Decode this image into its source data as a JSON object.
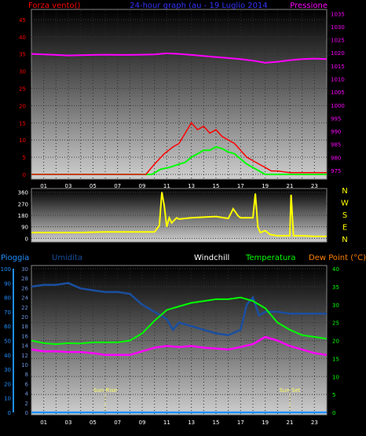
{
  "header": {
    "left_title": "Forza vento()",
    "center_title": "24-hour graph (au - 19 Luglio 2014",
    "right_title": "Pressione"
  },
  "direction_labels": [
    "N",
    "W",
    "S",
    "E",
    "N"
  ],
  "lower_header": {
    "rain": "Pioggia",
    "humidity": "Umidita",
    "windchill": "Windchill",
    "temperature": "Temperatura",
    "dewpoint": "Dew Point (°C)"
  },
  "sun": {
    "rise_label": "Sun Rise",
    "set_label": "Sun Set",
    "rise_hour": 6,
    "set_hour": 21
  },
  "hour_labels": [
    "01",
    "03",
    "05",
    "07",
    "09",
    "11",
    "13",
    "15",
    "17",
    "19",
    "21",
    "23"
  ],
  "colors": {
    "wind": "#ff0000",
    "gust_bg": "#00ff00",
    "pressure": "#ff00ff",
    "direction": "#ffff00",
    "humidity": "#1a4fa0",
    "temperature": "#00ff00",
    "dewpoint": "#ff00ff",
    "rain": "#1e90ff",
    "title_blue": "#3333ff"
  },
  "chart_data": [
    {
      "type": "line",
      "title": "24-hour graph (au - 19 Luglio 2014",
      "ylabel_left": "Forza vento()",
      "ylabel_right": "Pressione",
      "x_ticks": [
        "01",
        "03",
        "05",
        "07",
        "09",
        "11",
        "13",
        "15",
        "17",
        "19",
        "21",
        "23"
      ],
      "y_left_ticks": [
        0,
        5,
        10,
        15,
        20,
        25,
        30,
        35,
        40,
        45
      ],
      "y_right_ticks": [
        975,
        980,
        985,
        990,
        995,
        1000,
        1005,
        1010,
        1015,
        1020,
        1025,
        1030,
        1035
      ],
      "ylim_left": [
        0,
        47.5
      ],
      "ylim_right": [
        973.5,
        1036
      ],
      "xlim": [
        0,
        24
      ],
      "series": [
        {
          "axis": "right",
          "x": [
            0,
            1,
            2,
            3,
            4,
            5,
            6,
            7,
            8,
            9,
            10,
            11,
            12,
            13,
            14,
            15,
            16,
            17,
            18,
            19,
            20,
            21,
            22,
            23,
            24
          ],
          "values": [
            1019.6,
            1019.4,
            1019.2,
            1019.0,
            1019.1,
            1019.2,
            1019.3,
            1019.2,
            1019.2,
            1019.3,
            1019.4,
            1019.8,
            1019.6,
            1019.2,
            1018.8,
            1018.4,
            1018.0,
            1017.6,
            1017.0,
            1016.2,
            1016.6,
            1017.2,
            1017.6,
            1017.8,
            1017.6
          ]
        },
        {
          "axis": "left",
          "x": [
            0,
            9.3,
            10,
            10.8,
            11.5,
            12,
            12.5,
            13,
            13.5,
            14,
            14.5,
            15,
            15.5,
            16,
            16.5,
            17,
            17.5,
            18,
            18.5,
            19,
            19.5,
            20,
            21,
            22,
            23,
            24
          ],
          "values": [
            0,
            0,
            3,
            6,
            8,
            9,
            12,
            15,
            13,
            14,
            12,
            13,
            11,
            10,
            9,
            7,
            5,
            4,
            3,
            2,
            1,
            1,
            0.5,
            0.5,
            0.5,
            0.5
          ]
        },
        {
          "axis": "left",
          "x": [
            0,
            9.8,
            10.5,
            11.2,
            12,
            12.5,
            13,
            13.5,
            14,
            14.5,
            15,
            15.5,
            16,
            16.5,
            17,
            17.5,
            18,
            18.5,
            19,
            24
          ],
          "values": [
            0,
            0,
            1.5,
            2,
            3,
            3.5,
            5,
            6,
            7,
            7,
            8,
            7.5,
            6.5,
            6,
            4.5,
            3,
            2,
            1,
            0,
            0
          ]
        }
      ]
    },
    {
      "type": "line",
      "ylabel_right": "N W S E N",
      "y_ticks": [
        0,
        90,
        180,
        270,
        360
      ],
      "ylim": [
        -10,
        370
      ],
      "xlim": [
        0,
        24
      ],
      "series": [
        {
          "x": [
            0,
            2,
            4,
            6,
            8,
            9,
            10,
            10.4,
            10.6,
            10.8,
            11,
            11.2,
            11.4,
            11.6,
            11.8,
            12,
            13,
            14,
            15,
            16,
            16.4,
            16.8,
            17,
            18,
            18.2,
            18.4,
            18.6,
            19,
            19.4,
            20,
            20.5,
            21,
            21.1,
            21.3,
            21.5,
            22,
            23,
            24
          ],
          "values": [
            45,
            45,
            45,
            50,
            50,
            50,
            50,
            100,
            360,
            250,
            90,
            160,
            120,
            140,
            160,
            150,
            160,
            165,
            170,
            155,
            230,
            175,
            160,
            160,
            350,
            90,
            45,
            60,
            30,
            20,
            20,
            20,
            340,
            20,
            20,
            20,
            15,
            15
          ]
        }
      ]
    },
    {
      "type": "line",
      "y_rain_ticks": [
        0,
        10,
        20,
        30,
        40,
        50,
        60,
        70,
        80,
        90,
        100
      ],
      "y_humidity_ticks": [
        0,
        2,
        4,
        6,
        8,
        10,
        12,
        14,
        16,
        18,
        20,
        22,
        24,
        26,
        28,
        30
      ],
      "y_temp_ticks": [
        0,
        5,
        10,
        15,
        20,
        25,
        30,
        35,
        40
      ],
      "ylim_temp": [
        0,
        40
      ],
      "xlim": [
        0,
        24
      ],
      "series": [
        {
          "name": "Umidita",
          "x": [
            0,
            1,
            2,
            3,
            4,
            5,
            6,
            7,
            8,
            9,
            10,
            11,
            11.5,
            12,
            13,
            14,
            15,
            16,
            17,
            17.5,
            18,
            18.5,
            19,
            20,
            21,
            22,
            23,
            24
          ],
          "values": [
            35,
            35.5,
            35.5,
            36,
            34.5,
            34,
            33.5,
            33.5,
            33,
            30,
            28,
            26,
            23,
            25,
            24,
            23,
            22,
            21.5,
            23,
            30,
            32,
            27,
            28,
            28,
            27.5,
            27.5,
            27.5,
            27.5
          ]
        },
        {
          "name": "Temperatura",
          "x": [
            0,
            1,
            2,
            3,
            4,
            5,
            6,
            7,
            8,
            9,
            10,
            11,
            12,
            13,
            14,
            15,
            16,
            17,
            18,
            19,
            20,
            21,
            22,
            23,
            24
          ],
          "values": [
            20,
            19.3,
            19,
            19.3,
            19.2,
            19.5,
            19.5,
            19.5,
            20,
            22,
            25.5,
            28.5,
            29.5,
            30.5,
            31,
            31.5,
            31.5,
            32,
            31,
            29,
            25,
            23,
            21.5,
            21,
            20.5
          ]
        },
        {
          "name": "Dew Point",
          "x": [
            0,
            1,
            2,
            3,
            4,
            5,
            6,
            7,
            8,
            9,
            10,
            11,
            12,
            13,
            14,
            15,
            16,
            17,
            18,
            19,
            20,
            21,
            22,
            23,
            24
          ],
          "values": [
            17.5,
            17,
            17,
            16.8,
            16.8,
            16.5,
            16,
            16,
            16,
            17,
            18,
            18.5,
            18.2,
            18.5,
            18,
            17.8,
            17.5,
            18.2,
            19,
            21,
            20,
            18.5,
            17.5,
            16.5,
            16
          ]
        },
        {
          "name": "Pioggia",
          "x": [
            0,
            24
          ],
          "values": [
            0,
            0
          ]
        }
      ]
    }
  ]
}
